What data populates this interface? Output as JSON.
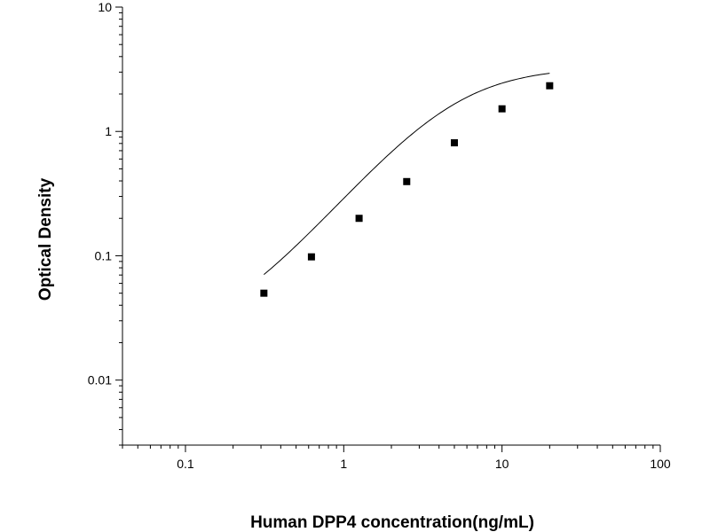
{
  "chart_data": {
    "type": "scatter",
    "title": "",
    "xlabel": "Human DPP4 concentration(ng/mL)",
    "ylabel": "Optical Density",
    "xscale": "log",
    "yscale": "log",
    "xlim": [
      0.04,
      100
    ],
    "ylim": [
      0.003,
      10
    ],
    "grid": false,
    "x_ticks": [
      {
        "value": 0.1,
        "label": "0.1"
      },
      {
        "value": 1,
        "label": "1"
      },
      {
        "value": 10,
        "label": "10"
      },
      {
        "value": 100,
        "label": "100"
      }
    ],
    "y_ticks": [
      {
        "value": 0.01,
        "label": "0.01"
      },
      {
        "value": 0.1,
        "label": "0.1"
      },
      {
        "value": 1,
        "label": "1"
      },
      {
        "value": 10,
        "label": "10"
      }
    ],
    "series": [
      {
        "marker": "square",
        "color": "#000000",
        "points": [
          {
            "x": 0.313,
            "y": 0.05
          },
          {
            "x": 0.625,
            "y": 0.098
          },
          {
            "x": 1.25,
            "y": 0.2
          },
          {
            "x": 2.5,
            "y": 0.395
          },
          {
            "x": 5,
            "y": 0.81
          },
          {
            "x": 10,
            "y": 1.52
          },
          {
            "x": 20,
            "y": 2.33
          }
        ]
      }
    ],
    "fit_curve": {
      "type": "four-parameter-logistic",
      "color": "#000000",
      "x_range": [
        0.313,
        20
      ],
      "params": {
        "A": 0.02,
        "B": 1.5,
        "C": 5,
        "D": 3.3
      }
    }
  }
}
